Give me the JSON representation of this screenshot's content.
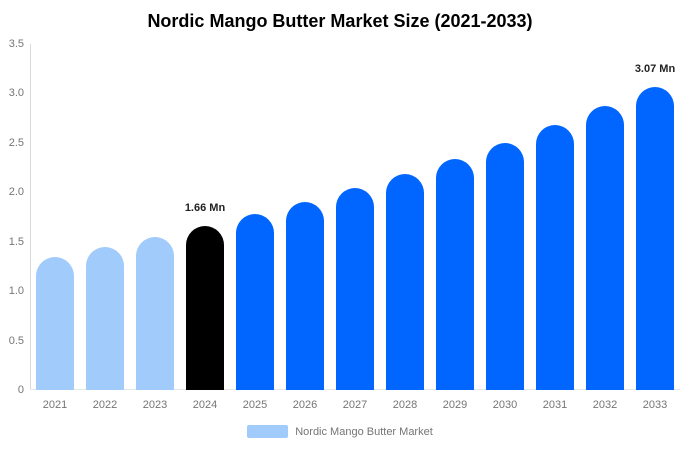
{
  "title": "Nordic Mango Butter Market Size (2021-2033)",
  "legend": {
    "label": "Nordic Mango Butter Market"
  },
  "colors": {
    "historical_bar": "#a0cbfa",
    "base_year_bar": "#000000",
    "forecast_bar": "#0066ff",
    "axis_line": "#d9d9d9",
    "baseline": "#e6e6e6",
    "tick_text": "#757575",
    "annotation_text": "#222222",
    "title_text": "#000000",
    "legend_swatch": "#a0cbfa"
  },
  "chart_data": {
    "type": "bar",
    "title": "Nordic Mango Butter Market Size (2021-2033)",
    "categories": [
      "2021",
      "2022",
      "2023",
      "2024",
      "2025",
      "2026",
      "2027",
      "2028",
      "2029",
      "2030",
      "2031",
      "2032",
      "2033"
    ],
    "series": [
      {
        "name": "Nordic Mango Butter Market",
        "values": [
          1.35,
          1.45,
          1.55,
          1.66,
          1.78,
          1.9,
          2.04,
          2.18,
          2.34,
          2.5,
          2.68,
          2.87,
          3.07
        ]
      }
    ],
    "unit": "Mn",
    "xlabel": "",
    "ylabel": "",
    "ylim": [
      0,
      3.5
    ],
    "yticks": [
      {
        "value": 3.5,
        "label": "3.5"
      },
      {
        "value": 3.0,
        "label": "3.0"
      },
      {
        "value": 2.5,
        "label": "2.5"
      },
      {
        "value": 2.0,
        "label": "2.0"
      },
      {
        "value": 1.5,
        "label": "1.5"
      },
      {
        "value": 1.0,
        "label": "1.0"
      },
      {
        "value": 0.5,
        "label": "0.5"
      },
      {
        "value": 0,
        "label": "0"
      }
    ],
    "grid": false,
    "legend_position": "bottom-center",
    "bar_colors": [
      "#a0cbfa",
      "#a0cbfa",
      "#a0cbfa",
      "#000000",
      "#0066ff",
      "#0066ff",
      "#0066ff",
      "#0066ff",
      "#0066ff",
      "#0066ff",
      "#0066ff",
      "#0066ff",
      "#0066ff"
    ],
    "annotations": [
      {
        "category": "2024",
        "text": "1.66 Mn"
      },
      {
        "category": "2033",
        "text": "3.07 Mn"
      }
    ]
  }
}
